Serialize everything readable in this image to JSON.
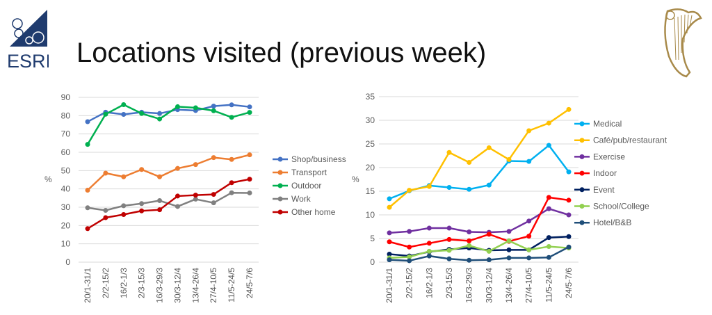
{
  "slide": {
    "title": "Locations visited (previous week)",
    "logo_text": "ESRI"
  },
  "chart_data": [
    {
      "type": "line",
      "categories": [
        "20/1-31/1",
        "2/2-15/2",
        "16/2-1/3",
        "2/3-15/3",
        "16/3-29/3",
        "30/3-12/4",
        "13/4-26/4",
        "27/4-10/5",
        "11/5-24/5",
        "24/5-7/6"
      ],
      "ylabel": "%",
      "ylim": [
        0,
        90
      ],
      "yticks": [
        0,
        10,
        20,
        30,
        40,
        50,
        60,
        70,
        80,
        90
      ],
      "grid": true,
      "legend": "right",
      "series": [
        {
          "name": "Shop/business",
          "color": "#4472C4",
          "values": [
            76.7,
            81.9,
            80.7,
            81.9,
            81.2,
            83.3,
            82.8,
            85.2,
            85.9,
            84.8
          ]
        },
        {
          "name": "Transport",
          "color": "#ED7D31",
          "values": [
            39.3,
            48.6,
            46.6,
            50.6,
            46.6,
            51.2,
            53.3,
            57.1,
            56.1,
            58.6
          ]
        },
        {
          "name": "Outdoor",
          "color": "#00B050",
          "values": [
            64.3,
            80.8,
            86.0,
            81.2,
            78.2,
            84.9,
            84.3,
            82.7,
            79.1,
            81.8
          ]
        },
        {
          "name": "Work",
          "color": "#808080",
          "values": [
            29.7,
            28.3,
            30.8,
            32.0,
            33.6,
            30.4,
            34.4,
            32.4,
            37.9,
            37.8
          ]
        },
        {
          "name": "Other home",
          "color": "#C00000",
          "values": [
            18.3,
            24.3,
            26.0,
            28.0,
            28.6,
            36.1,
            36.6,
            37.0,
            43.4,
            45.3
          ]
        }
      ]
    },
    {
      "type": "line",
      "categories": [
        "20/1-31/1",
        "2/2-15/2",
        "16/2-1/3",
        "2/3-15/3",
        "16/3-29/3",
        "30/3-12/4",
        "13/4-26/4",
        "27/4-10/5",
        "11/5-24/5",
        "24/5-7/6"
      ],
      "ylabel": "%",
      "ylim": [
        0,
        35
      ],
      "yticks": [
        0,
        5,
        10,
        15,
        20,
        25,
        30,
        35
      ],
      "grid": true,
      "legend": "right",
      "series": [
        {
          "name": "Medical",
          "color": "#00B0F0",
          "values": [
            13.4,
            15.1,
            16.2,
            15.8,
            15.4,
            16.3,
            21.4,
            21.3,
            24.7,
            19.1
          ]
        },
        {
          "name": "Café/pub/restaurant",
          "color": "#FFC000",
          "values": [
            11.6,
            15.2,
            16.0,
            23.2,
            21.1,
            24.2,
            21.7,
            27.8,
            29.4,
            32.3
          ]
        },
        {
          "name": "Exercise",
          "color": "#7030A0",
          "values": [
            6.2,
            6.5,
            7.2,
            7.2,
            6.4,
            6.3,
            6.5,
            8.7,
            11.3,
            10.0
          ]
        },
        {
          "name": "Indoor",
          "color": "#FF0000",
          "values": [
            4.3,
            3.2,
            4.0,
            4.8,
            4.5,
            5.9,
            4.4,
            5.5,
            13.7,
            13.1
          ]
        },
        {
          "name": "Event",
          "color": "#002060",
          "values": [
            1.7,
            1.3,
            2.2,
            2.7,
            3.0,
            2.5,
            2.6,
            2.6,
            5.2,
            5.4
          ]
        },
        {
          "name": "School/College",
          "color": "#92D050",
          "values": [
            0.9,
            1.1,
            2.3,
            2.5,
            3.5,
            2.3,
            4.5,
            2.6,
            3.3,
            3.0
          ]
        },
        {
          "name": "Hotel/B&B",
          "color": "#1F4E79",
          "values": [
            0.5,
            0.3,
            1.3,
            0.7,
            0.4,
            0.5,
            0.9,
            0.9,
            1.0,
            3.2
          ]
        }
      ]
    }
  ]
}
